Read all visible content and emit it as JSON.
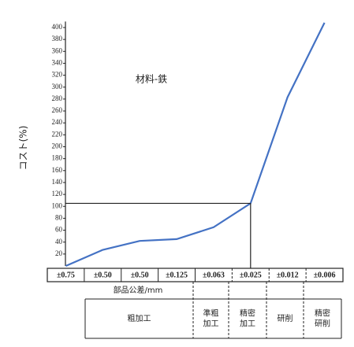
{
  "chart_data": {
    "type": "line",
    "annotation": "材料-鉄",
    "y_label": "コスト(%)",
    "x_label": "部品公差/mm",
    "categories": [
      "±0.75",
      "±0.50",
      "±0.50",
      "±0.125",
      "±0.063",
      "±0.025",
      "±0.012",
      "±0.006"
    ],
    "series": [
      {
        "color": "#4472c4",
        "values": [
          0,
          27,
          42,
          45,
          65,
          105,
          283,
          408
        ]
      }
    ],
    "ylim": [
      0,
      410
    ],
    "yticks": [
      20,
      40,
      60,
      80,
      100,
      120,
      140,
      160,
      180,
      200,
      220,
      240,
      260,
      280,
      300,
      320,
      340,
      360,
      380,
      400
    ],
    "processes": [
      [
        "粗加工"
      ],
      [
        "準粗",
        "加工"
      ],
      [
        "精密",
        "加工"
      ],
      [
        "研削"
      ],
      [
        "精密",
        "研削"
      ]
    ]
  }
}
